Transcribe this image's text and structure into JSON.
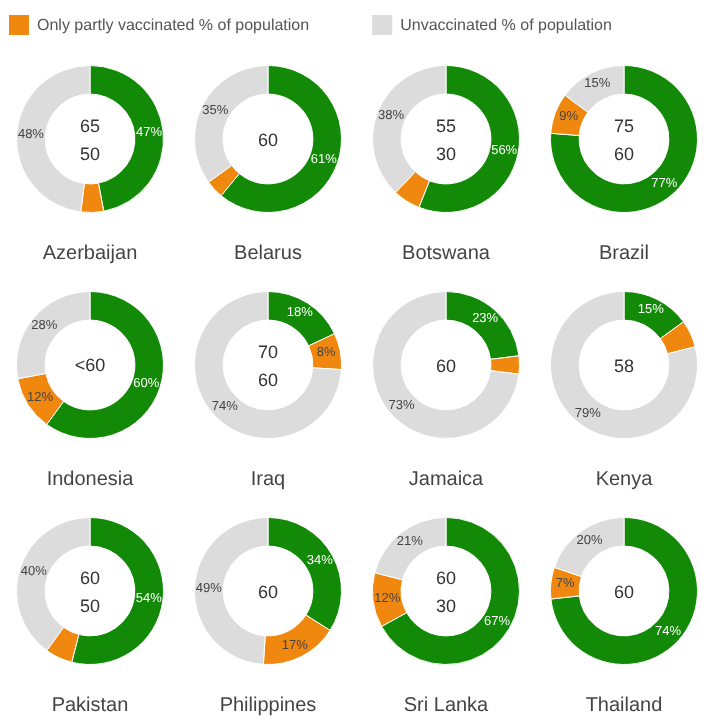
{
  "chart_data": [
    {
      "type": "donut",
      "title": "Azerbaijan",
      "categories": [
        null,
        "Only partly vaccinated % of population",
        "Unvaccinated % of population"
      ],
      "colors": [
        "#138a07",
        "#f0880f",
        "#dcdcdc"
      ],
      "values": [
        47,
        5,
        48
      ],
      "value_labels": [
        "47%",
        null,
        "48%"
      ],
      "annotations": [
        "65",
        "50"
      ],
      "legend": "top"
    },
    {
      "type": "donut",
      "title": "Belarus",
      "categories": [
        null,
        null,
        null
      ],
      "colors": [
        "#138a07",
        "#f0880f",
        "#dcdcdc"
      ],
      "values": [
        61,
        4,
        35
      ],
      "value_labels": [
        "61%",
        null,
        "35%"
      ],
      "annotations": [
        "60"
      ]
    },
    {
      "type": "donut",
      "title": "Botswana",
      "categories": [
        null,
        null,
        null
      ],
      "colors": [
        "#138a07",
        "#f0880f",
        "#dcdcdc"
      ],
      "values": [
        56,
        6,
        38
      ],
      "value_labels": [
        "56%",
        null,
        "38%"
      ],
      "annotations": [
        "55",
        "30"
      ]
    },
    {
      "type": "donut",
      "title": "Brazil",
      "categories": [
        null,
        null,
        null
      ],
      "colors": [
        "#138a07",
        "#f0880f",
        "#dcdcdc"
      ],
      "values": [
        77,
        9,
        15
      ],
      "value_labels": [
        "77%",
        "9%",
        "15%"
      ],
      "annotations": [
        "75",
        "60"
      ]
    },
    {
      "type": "donut",
      "title": "Indonesia",
      "categories": [
        null,
        null,
        null
      ],
      "colors": [
        "#138a07",
        "#f0880f",
        "#dcdcdc"
      ],
      "values": [
        60,
        12,
        28
      ],
      "value_labels": [
        "60%",
        "12%",
        "28%"
      ],
      "annotations": [
        "<60"
      ]
    },
    {
      "type": "donut",
      "title": "Iraq",
      "categories": [
        null,
        null,
        null
      ],
      "colors": [
        "#138a07",
        "#f0880f",
        "#dcdcdc"
      ],
      "values": [
        18,
        8,
        74
      ],
      "value_labels": [
        "18%",
        "8%",
        "74%"
      ],
      "annotations": [
        "70",
        "60"
      ]
    },
    {
      "type": "donut",
      "title": "Jamaica",
      "categories": [
        null,
        null,
        null
      ],
      "colors": [
        "#138a07",
        "#f0880f",
        "#dcdcdc"
      ],
      "values": [
        23,
        4,
        73
      ],
      "value_labels": [
        "23%",
        null,
        "73%"
      ],
      "annotations": [
        "60"
      ]
    },
    {
      "type": "donut",
      "title": "Kenya",
      "categories": [
        null,
        null,
        null
      ],
      "colors": [
        "#138a07",
        "#f0880f",
        "#dcdcdc"
      ],
      "values": [
        15,
        6,
        79
      ],
      "value_labels": [
        "15%",
        null,
        "79%"
      ],
      "annotations": [
        "58"
      ]
    },
    {
      "type": "donut",
      "title": "Pakistan",
      "categories": [
        null,
        null,
        null
      ],
      "colors": [
        "#138a07",
        "#f0880f",
        "#dcdcdc"
      ],
      "values": [
        54,
        6,
        40
      ],
      "value_labels": [
        "54%",
        null,
        "40%"
      ],
      "annotations": [
        "60",
        "50"
      ]
    },
    {
      "type": "donut",
      "title": "Philippines",
      "categories": [
        null,
        null,
        null
      ],
      "colors": [
        "#138a07",
        "#f0880f",
        "#dcdcdc"
      ],
      "values": [
        34,
        17,
        49
      ],
      "value_labels": [
        "34%",
        "17%",
        "49%"
      ],
      "annotations": [
        "60"
      ]
    },
    {
      "type": "donut",
      "title": "Sri Lanka",
      "categories": [
        null,
        null,
        null
      ],
      "colors": [
        "#138a07",
        "#f0880f",
        "#dcdcdc"
      ],
      "values": [
        67,
        12,
        21
      ],
      "value_labels": [
        "67%",
        "12%",
        "21%"
      ],
      "annotations": [
        "60",
        "30"
      ]
    },
    {
      "type": "donut",
      "title": "Thailand",
      "categories": [
        null,
        null,
        null
      ],
      "colors": [
        "#138a07",
        "#f0880f",
        "#dcdcdc"
      ],
      "values": [
        74,
        7,
        20
      ],
      "value_labels": [
        "74%",
        "7%",
        "20%"
      ],
      "annotations": [
        "60"
      ]
    }
  ]
}
